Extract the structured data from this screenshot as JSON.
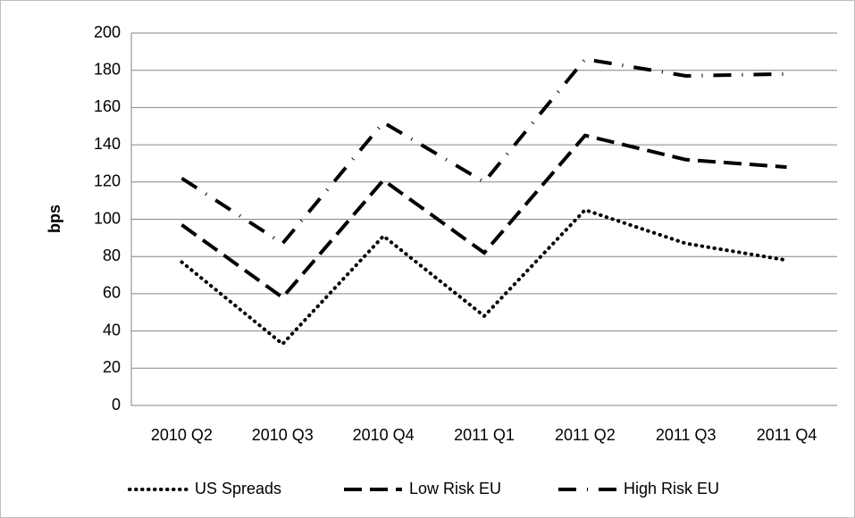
{
  "chart_data": {
    "type": "line",
    "y_label": "bps",
    "categories": [
      "2010 Q2",
      "2010 Q3",
      "2010 Q4",
      "2011 Q1",
      "2011 Q2",
      "2011 Q3",
      "2011 Q4"
    ],
    "series": [
      {
        "name": "US Spreads",
        "color": "#000000",
        "dash": "dotted",
        "values": [
          77,
          33,
          91,
          48,
          105,
          87,
          78
        ]
      },
      {
        "name": "Low Risk EU",
        "color": "#000000",
        "dash": "dashed",
        "values": [
          97,
          58,
          121,
          82,
          145,
          132,
          128
        ]
      },
      {
        "name": "High Risk EU",
        "color": "#000000",
        "dash": "dashdot",
        "values": [
          122,
          87,
          152,
          120,
          186,
          177,
          178
        ]
      }
    ],
    "ylim": [
      0,
      200
    ],
    "yticks": [
      0,
      20,
      40,
      60,
      80,
      100,
      120,
      140,
      160,
      180,
      200
    ],
    "grid": true,
    "legend": "bottom"
  }
}
